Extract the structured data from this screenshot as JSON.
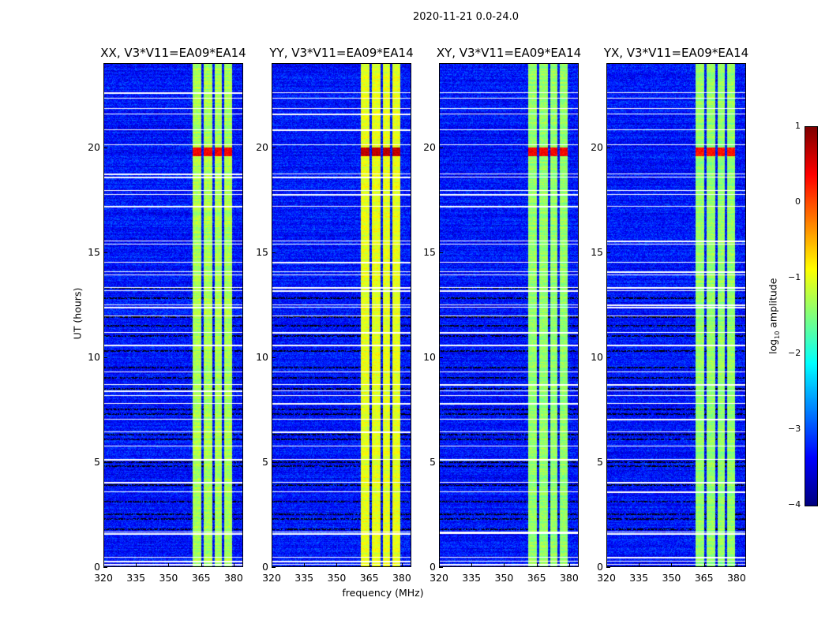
{
  "chart_data": {
    "type": "heatmap",
    "title": "2020-11-21 0.0-24.0",
    "xlabel": "frequency (MHz)",
    "ylabel": "UT (hours)",
    "xlim": [
      320,
      384.4
    ],
    "ylim": [
      0,
      24
    ],
    "xticks": [
      "320",
      "335",
      "350",
      "365",
      "380"
    ],
    "xtick_values": [
      320,
      335,
      350,
      365,
      380
    ],
    "yticks": [
      "0",
      "5",
      "10",
      "15",
      "20"
    ],
    "ytick_values": [
      0,
      5,
      10,
      15,
      20
    ],
    "colorbar": {
      "label_prefix": "log",
      "label_sub": "10",
      "label_suffix": " amplitude",
      "range": [
        -4,
        1
      ],
      "ticks": [
        "1",
        "0",
        "−1",
        "−2",
        "−3",
        "−4"
      ],
      "tick_values": [
        1,
        0,
        -1,
        -2,
        -3,
        -4
      ],
      "colormap": "jet"
    },
    "panels": [
      {
        "title": "XX, V3*V11=EA09*EA14",
        "background_level": -3.3,
        "band_level": -1.3,
        "peak_level": 0.4
      },
      {
        "title": "YY, V3*V11=EA09*EA14",
        "background_level": -3.3,
        "band_level": -1.0,
        "peak_level": 0.7
      },
      {
        "title": "XY, V3*V11=EA09*EA14",
        "background_level": -3.3,
        "band_level": -1.4,
        "peak_level": 0.4
      },
      {
        "title": "YX, V3*V11=EA09*EA14",
        "background_level": -3.3,
        "band_level": -1.4,
        "peak_level": 0.3
      }
    ],
    "bright_channels_mhz": [
      [
        361,
        365
      ],
      [
        366,
        370
      ],
      [
        371,
        374.5
      ],
      [
        375.5,
        379
      ]
    ],
    "peak_time_hours": [
      19.6,
      20.0
    ],
    "flagged_hours_white": [
      22.6,
      22.35,
      21.85,
      21.6,
      20.85,
      20.15,
      18.75,
      18.6,
      17.95,
      17.75,
      17.2,
      15.55,
      15.4,
      14.55,
      14.1,
      13.95,
      13.35,
      13.2,
      12.5,
      12.4,
      12.0,
      11.2,
      10.6,
      9.3,
      8.7,
      8.4,
      8.2,
      7.8,
      7.05,
      6.45,
      5.8,
      5.15,
      4.05,
      3.6,
      1.7,
      1.6,
      0.5,
      0.3,
      0.15
    ],
    "low_hours_black": [
      13.3,
      12.8,
      11.9,
      11.5,
      11.0,
      10.3,
      9.5,
      9.0,
      8.5,
      7.5,
      7.3,
      6.3,
      6.1,
      5.0,
      4.8,
      3.9,
      3.1,
      2.5,
      2.3,
      1.8
    ]
  }
}
